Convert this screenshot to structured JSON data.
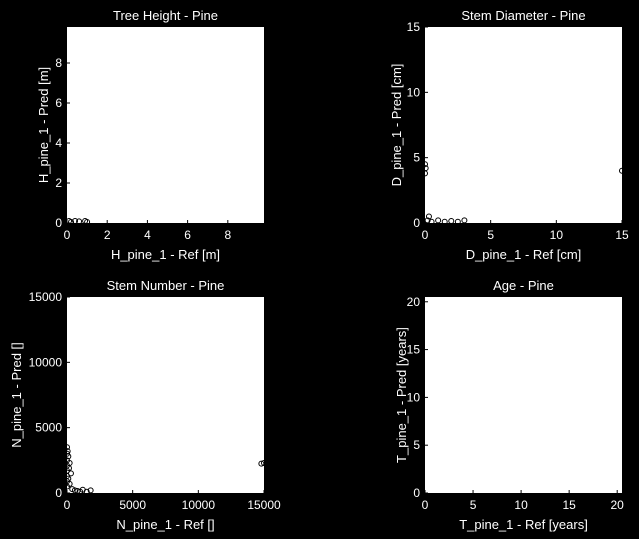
{
  "chart_data": [
    {
      "id": "height",
      "type": "scatter",
      "title": "Tree Height - Pine",
      "xlabel": "H_pine_1 - Ref [m]",
      "ylabel": "H_pine_1 - Pred [m]",
      "xlim": [
        0,
        9.8
      ],
      "ylim": [
        0,
        9.8
      ],
      "xticks": [
        0,
        2,
        4,
        6,
        8
      ],
      "yticks": [
        0,
        2,
        4,
        6,
        8
      ],
      "points": [
        [
          0.1,
          0.1
        ],
        [
          0.2,
          0.05
        ],
        [
          0.4,
          0.1
        ],
        [
          0.6,
          0.08
        ],
        [
          0.9,
          0.1
        ],
        [
          1.0,
          0.05
        ]
      ]
    },
    {
      "id": "diameter",
      "type": "scatter",
      "title": "Stem Diameter - Pine",
      "xlabel": "D_pine_1 - Ref [cm]",
      "ylabel": "D_pine_1 - Pred [cm]",
      "xlim": [
        0,
        15
      ],
      "ylim": [
        0,
        15
      ],
      "xticks": [
        0,
        5,
        10,
        15
      ],
      "yticks": [
        0,
        5,
        10,
        15
      ],
      "points": [
        [
          0,
          4.5
        ],
        [
          0.05,
          4.2
        ],
        [
          0,
          3.8
        ],
        [
          15,
          4.0
        ],
        [
          0.2,
          0.2
        ],
        [
          0.5,
          0.1
        ],
        [
          1,
          0.2
        ],
        [
          1.5,
          0.1
        ],
        [
          2,
          0.15
        ],
        [
          2.5,
          0.1
        ],
        [
          3,
          0.2
        ],
        [
          0.3,
          0.5
        ]
      ]
    },
    {
      "id": "number",
      "type": "scatter",
      "title": "Stem Number - Pine",
      "xlabel": "N_pine_1 - Ref []",
      "ylabel": "N_pine_1 - Pred []",
      "xlim": [
        0,
        15000
      ],
      "ylim": [
        0,
        15000
      ],
      "xticks": [
        0,
        5000,
        10000,
        15000
      ],
      "yticks": [
        0,
        5000,
        10000,
        15000
      ],
      "points": [
        [
          0,
          3500
        ],
        [
          50,
          3200
        ],
        [
          0,
          3000
        ],
        [
          100,
          2800
        ],
        [
          0,
          2500
        ],
        [
          200,
          2300
        ],
        [
          0,
          2100
        ],
        [
          150,
          1900
        ],
        [
          0,
          1700
        ],
        [
          300,
          1500
        ],
        [
          0,
          1300
        ],
        [
          100,
          1100
        ],
        [
          0,
          900
        ],
        [
          200,
          700
        ],
        [
          0,
          500
        ],
        [
          400,
          300
        ],
        [
          600,
          200
        ],
        [
          800,
          150
        ],
        [
          1000,
          100
        ],
        [
          1200,
          250
        ],
        [
          1500,
          100
        ],
        [
          1800,
          200
        ],
        [
          15000,
          2300
        ],
        [
          14800,
          2250
        ]
      ]
    },
    {
      "id": "age",
      "type": "scatter",
      "title": "Age - Pine",
      "xlabel": "T_pine_1 - Ref [years]",
      "ylabel": "T_pine_1 - Pred [years]",
      "xlim": [
        0,
        20.5
      ],
      "ylim": [
        0,
        20.5
      ],
      "xticks": [
        0,
        5,
        10,
        15,
        20
      ],
      "yticks": [
        0,
        5,
        10,
        15,
        20
      ],
      "points": []
    }
  ]
}
